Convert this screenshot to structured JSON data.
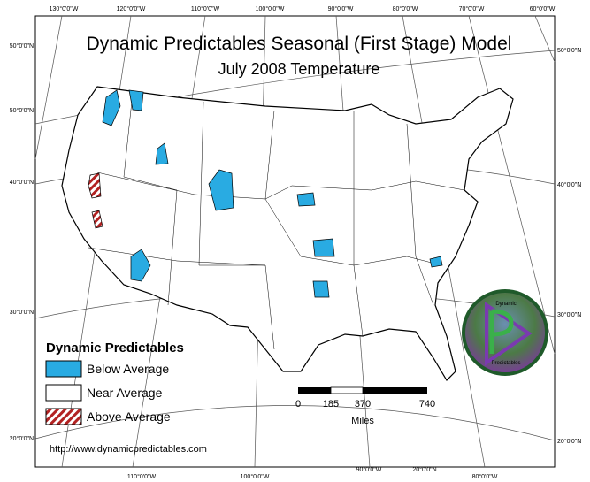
{
  "title": "Dynamic Predictables Seasonal (First Stage) Model",
  "subtitle": "July 2008 Temperature",
  "graticule": {
    "top": [
      "130°0'0\"W",
      "120°0'0\"W",
      "110°0'0\"W",
      "100°0'0\"W",
      "90°0'0\"W",
      "80°0'0\"W",
      "70°0'0\"W",
      "60°0'0\"W"
    ],
    "bottom": [
      "110°0'0\"W",
      "100°0'0\"W",
      "90°0'0\"W",
      "20°0'0\"N",
      "80°0'0\"W"
    ],
    "left": [
      "50°0'0\"N",
      "50°0'0\"N",
      "40°0'0\"N",
      "30°0'0\"N",
      "20°0'0\"N"
    ],
    "right": [
      "50°0'0\"N",
      "40°0'0\"N",
      "30°0'0\"N",
      "20°0'0\"N"
    ]
  },
  "legend": {
    "title": "Dynamic Predictables",
    "items": [
      "Below Average",
      "Near Average",
      "Above Average"
    ]
  },
  "scale_bar": {
    "ticks": [
      "0",
      "185",
      "370",
      "740"
    ],
    "unit": "Miles"
  },
  "url": "http://www.dynamicpredictables.com",
  "logo": {
    "top": "Dynamic",
    "bottom": "Predictables"
  }
}
